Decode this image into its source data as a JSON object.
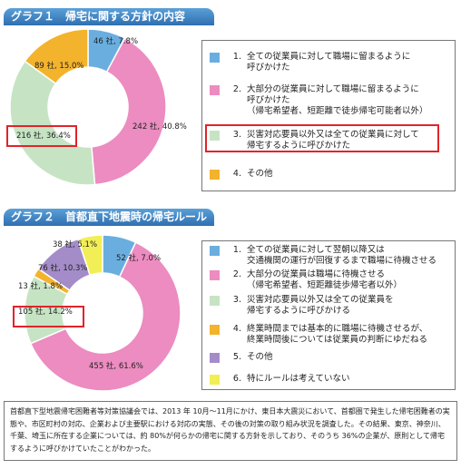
{
  "chart_data": [
    {
      "type": "pie",
      "title": "グラフ１　帰宅に関する方針の内容",
      "slices": [
        {
          "label": "46 社, 7.8%",
          "value": 7.8,
          "color": "#6aaee0"
        },
        {
          "label": "242 社, 40.8%",
          "value": 40.8,
          "color": "#ec8cc0"
        },
        {
          "label": "216 社, 36.4%",
          "value": 36.4,
          "color": "#c6e4c4"
        },
        {
          "label": "89 社, 15.0%",
          "value": 15.0,
          "color": "#f4b32c"
        }
      ],
      "legend": [
        {
          "num": "1.",
          "text": "全ての従業員に対して職場に留まるように\n呼びかけた",
          "color": "#6aaee0"
        },
        {
          "num": "2.",
          "text": "大部分の従業員に対して職場に留まるように\n呼びかけた\n（帰宅希望者、短距離で徒歩帰宅可能者以外）",
          "color": "#ec8cc0"
        },
        {
          "num": "3.",
          "text": "災害対応要員以外又は全ての従業員に対して\n帰宅するように呼びかけた",
          "color": "#c6e4c4"
        },
        {
          "num": "4.",
          "text": "その他",
          "color": "#f4b32c"
        }
      ]
    },
    {
      "type": "pie",
      "title": "グラフ２　首都直下地震時の帰宅ルール",
      "slices": [
        {
          "label": "52 社, 7.0%",
          "value": 7.0,
          "color": "#6aaee0"
        },
        {
          "label": "455 社, 61.6%",
          "value": 61.6,
          "color": "#ec8cc0"
        },
        {
          "label": "105 社, 14.2%",
          "value": 14.2,
          "color": "#c6e4c4"
        },
        {
          "label": "13 社, 1.8%",
          "value": 1.8,
          "color": "#f4b32c"
        },
        {
          "label": "76 社, 10.3%",
          "value": 10.3,
          "color": "#a48cc8"
        },
        {
          "label": "38 社, 5.1%",
          "value": 5.1,
          "color": "#f2ee55"
        }
      ],
      "legend": [
        {
          "num": "1.",
          "text": "全ての従業員に対して翌朝以降又は\n交通機関の運行が回復するまで職場に待機させる",
          "color": "#6aaee0"
        },
        {
          "num": "2.",
          "text": "大部分の従業員は職場に待機させる\n（帰宅希望者、短距離徒歩帰宅者以外）",
          "color": "#ec8cc0"
        },
        {
          "num": "3.",
          "text": "災害対応要員以外又は全ての従業員を\n帰宅するように呼びかける",
          "color": "#c6e4c4"
        },
        {
          "num": "4.",
          "text": "終業時間までは基本的に職場に待機させるが、\n終業時間後については従業員の判断にゆだねる",
          "color": "#f4b32c"
        },
        {
          "num": "5.",
          "text": "その他",
          "color": "#a48cc8"
        },
        {
          "num": "6.",
          "text": "特にルールは考えていない",
          "color": "#f2ee55"
        }
      ]
    }
  ],
  "note": "首都直下型地震帰宅困難者等対策協議会では、2013 年 10月～11月にかけ、東日本大震災において、首都圏で発生した帰宅困難者の実態や、市区町村の対応、企業および主要駅における対応の実態、その後の対策の取り組み状況を調査した。その結果、東京、神奈川、千葉、埼玉に所在する企業については、約 80%が何らかの帰宅に関する方針を示しており、そのうち 36%の企業が、原則として帰宅するように呼びかけていたことがわかった。"
}
